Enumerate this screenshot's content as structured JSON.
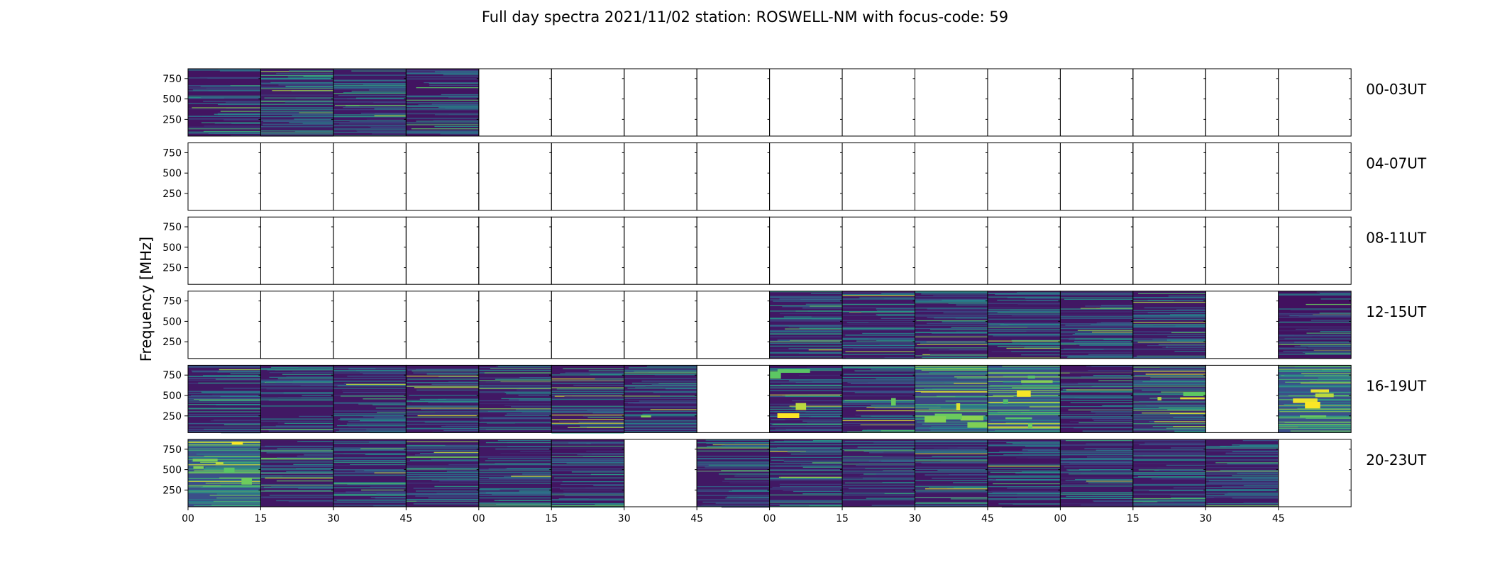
{
  "chart_data": {
    "type": "heatmap",
    "title": "Full day spectra 2021/11/02 station: ROSWELL-NM with focus-code: 59",
    "ylabel": "Frequency [MHz]",
    "ylim": [
      45,
      870
    ],
    "yticks": [
      250,
      500,
      750
    ],
    "xticks": [
      "00",
      "15",
      "30",
      "45",
      "00",
      "15",
      "30",
      "45",
      "00",
      "15",
      "30",
      "45",
      "00",
      "15",
      "30",
      "45"
    ],
    "colormap": "viridis",
    "colors": {
      "low": "#440154",
      "mid": "#21908c",
      "high": "#fde725"
    },
    "panels_per_row": 16,
    "rows": [
      {
        "label": "00-03UT",
        "has_data": [
          true,
          true,
          true,
          true,
          false,
          false,
          false,
          false,
          false,
          false,
          false,
          false,
          false,
          false,
          false,
          false
        ],
        "level": [
          0.1,
          0.14,
          0.12,
          0.1,
          0,
          0,
          0,
          0,
          0,
          0,
          0,
          0,
          0,
          0,
          0,
          0
        ],
        "saturation": [
          0,
          0,
          0,
          0,
          0,
          0,
          0,
          0,
          0,
          0,
          0,
          0,
          0,
          0,
          0,
          0
        ]
      },
      {
        "label": "04-07UT",
        "has_data": [
          false,
          false,
          false,
          false,
          false,
          false,
          false,
          false,
          false,
          false,
          false,
          false,
          false,
          false,
          false,
          false
        ],
        "level": [
          0,
          0,
          0,
          0,
          0,
          0,
          0,
          0,
          0,
          0,
          0,
          0,
          0,
          0,
          0,
          0
        ],
        "saturation": [
          0,
          0,
          0,
          0,
          0,
          0,
          0,
          0,
          0,
          0,
          0,
          0,
          0,
          0,
          0,
          0
        ]
      },
      {
        "label": "08-11UT",
        "has_data": [
          false,
          false,
          false,
          false,
          false,
          false,
          false,
          false,
          false,
          false,
          false,
          false,
          false,
          false,
          false,
          false
        ],
        "level": [
          0,
          0,
          0,
          0,
          0,
          0,
          0,
          0,
          0,
          0,
          0,
          0,
          0,
          0,
          0,
          0
        ],
        "saturation": [
          0,
          0,
          0,
          0,
          0,
          0,
          0,
          0,
          0,
          0,
          0,
          0,
          0,
          0,
          0,
          0
        ]
      },
      {
        "label": "12-15UT",
        "has_data": [
          false,
          false,
          false,
          false,
          false,
          false,
          false,
          false,
          true,
          true,
          true,
          true,
          true,
          true,
          false,
          true
        ],
        "level": [
          0,
          0,
          0,
          0,
          0,
          0,
          0,
          0,
          0.12,
          0.12,
          0.12,
          0.12,
          0.12,
          0.12,
          0,
          0.08
        ],
        "saturation": [
          0,
          0,
          0,
          0,
          0,
          0,
          0,
          0,
          0,
          0,
          0,
          0,
          0,
          0,
          0,
          0
        ]
      },
      {
        "label": "16-19UT",
        "has_data": [
          true,
          true,
          true,
          true,
          true,
          true,
          true,
          false,
          true,
          true,
          true,
          true,
          true,
          true,
          false,
          true
        ],
        "level": [
          0.12,
          0.12,
          0.12,
          0.12,
          0.12,
          0.12,
          0.12,
          0,
          0.12,
          0.12,
          0.35,
          0.4,
          0.1,
          0.2,
          0,
          0.4
        ],
        "saturation": [
          0,
          0,
          0,
          0,
          0,
          0,
          0.05,
          0,
          0.3,
          0.05,
          0.35,
          0.4,
          0,
          0.2,
          0,
          0.35
        ]
      },
      {
        "label": "20-23UT",
        "has_data": [
          true,
          true,
          true,
          true,
          true,
          true,
          false,
          true,
          true,
          true,
          true,
          true,
          true,
          true,
          true,
          false
        ],
        "level": [
          0.4,
          0.12,
          0.12,
          0.12,
          0.12,
          0.1,
          0,
          0.12,
          0.12,
          0.12,
          0.12,
          0.1,
          0.12,
          0.12,
          0.12,
          0
        ],
        "saturation": [
          0.45,
          0,
          0,
          0,
          0.03,
          0,
          0,
          0,
          0,
          0,
          0,
          0,
          0,
          0,
          0,
          0
        ]
      }
    ]
  }
}
